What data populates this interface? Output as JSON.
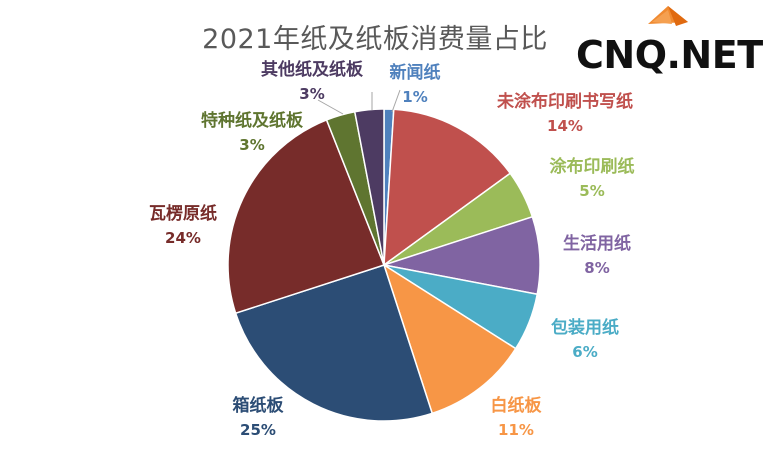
{
  "watermark": {
    "text": "CNQ.NET",
    "logo_color": "#e8731c"
  },
  "chart_data": {
    "type": "pie",
    "title": "2021年纸及纸板消费量占比",
    "slices": [
      {
        "label": "新闻纸",
        "value": 1,
        "percent_label": "1%",
        "color": "#4f81bd",
        "text_color": "#4f81bd"
      },
      {
        "label": "未涂布印刷书写纸",
        "value": 14,
        "percent_label": "14%",
        "color": "#c0504d",
        "text_color": "#c0504d"
      },
      {
        "label": "涂布印刷纸",
        "value": 5,
        "percent_label": "5%",
        "color": "#9bbb59",
        "text_color": "#9bbb59"
      },
      {
        "label": "生活用纸",
        "value": 8,
        "percent_label": "8%",
        "color": "#8064a2",
        "text_color": "#8064a2"
      },
      {
        "label": "包装用纸",
        "value": 6,
        "percent_label": "6%",
        "color": "#4bacc6",
        "text_color": "#4bacc6"
      },
      {
        "label": "白纸板",
        "value": 11,
        "percent_label": "11%",
        "color": "#f79646",
        "text_color": "#f79646"
      },
      {
        "label": "箱纸板",
        "value": 25,
        "percent_label": "25%",
        "color": "#2c4d75",
        "text_color": "#2c4d75"
      },
      {
        "label": "瓦楞原纸",
        "value": 24,
        "percent_label": "24%",
        "color": "#772c2a",
        "text_color": "#772c2a"
      },
      {
        "label": "特种纸及纸板",
        "value": 3,
        "percent_label": "3%",
        "color": "#5f7530",
        "text_color": "#5f7530"
      },
      {
        "label": "其他纸及纸板",
        "value": 3,
        "percent_label": "3%",
        "color": "#4d3b62",
        "text_color": "#4d3b62"
      }
    ]
  }
}
